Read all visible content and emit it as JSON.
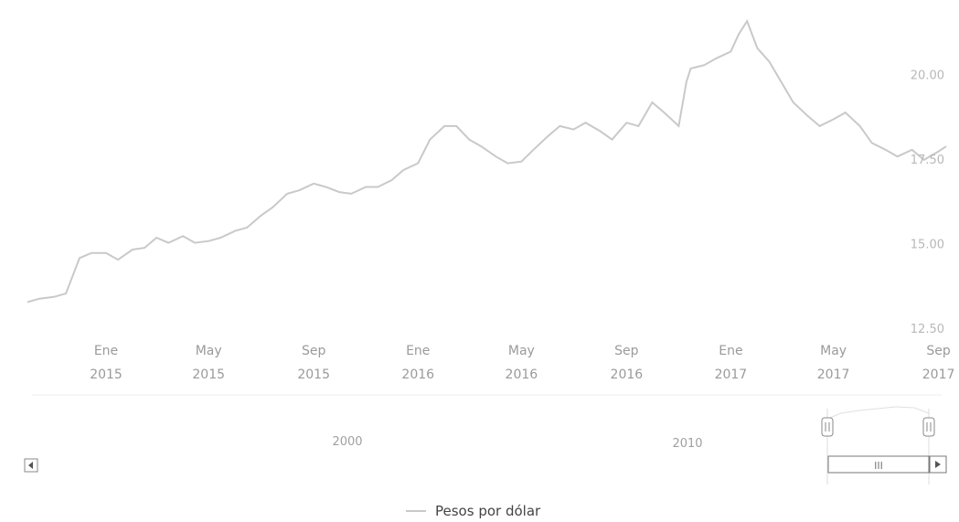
{
  "chart_data": {
    "type": "line",
    "series": [
      {
        "name": "Pesos por dólar",
        "color": "#c9c9c9",
        "points": [
          [
            "2014-10-01",
            13.3
          ],
          [
            "2014-10-15",
            13.4
          ],
          [
            "2014-11-01",
            13.45
          ],
          [
            "2014-11-15",
            13.55
          ],
          [
            "2014-12-01",
            14.6
          ],
          [
            "2014-12-15",
            14.75
          ],
          [
            "2015-01-01",
            14.75
          ],
          [
            "2015-01-15",
            14.55
          ],
          [
            "2015-02-01",
            14.85
          ],
          [
            "2015-02-15",
            14.9
          ],
          [
            "2015-03-01",
            15.2
          ],
          [
            "2015-03-15",
            15.05
          ],
          [
            "2015-04-01",
            15.25
          ],
          [
            "2015-04-15",
            15.05
          ],
          [
            "2015-05-01",
            15.1
          ],
          [
            "2015-05-15",
            15.2
          ],
          [
            "2015-06-01",
            15.4
          ],
          [
            "2015-06-15",
            15.5
          ],
          [
            "2015-07-01",
            15.85
          ],
          [
            "2015-07-15",
            16.1
          ],
          [
            "2015-08-01",
            16.5
          ],
          [
            "2015-08-15",
            16.6
          ],
          [
            "2015-09-01",
            16.8
          ],
          [
            "2015-09-15",
            16.7
          ],
          [
            "2015-10-01",
            16.55
          ],
          [
            "2015-10-15",
            16.5
          ],
          [
            "2015-11-01",
            16.7
          ],
          [
            "2015-11-15",
            16.7
          ],
          [
            "2015-12-01",
            16.9
          ],
          [
            "2015-12-15",
            17.2
          ],
          [
            "2016-01-01",
            17.4
          ],
          [
            "2016-01-15",
            18.1
          ],
          [
            "2016-02-01",
            18.5
          ],
          [
            "2016-02-15",
            18.5
          ],
          [
            "2016-03-01",
            18.1
          ],
          [
            "2016-03-15",
            17.9
          ],
          [
            "2016-04-01",
            17.6
          ],
          [
            "2016-04-15",
            17.4
          ],
          [
            "2016-05-01",
            17.45
          ],
          [
            "2016-05-15",
            17.8
          ],
          [
            "2016-06-01",
            18.2
          ],
          [
            "2016-06-15",
            18.5
          ],
          [
            "2016-07-01",
            18.4
          ],
          [
            "2016-07-15",
            18.6
          ],
          [
            "2016-08-01",
            18.35
          ],
          [
            "2016-08-15",
            18.1
          ],
          [
            "2016-09-01",
            18.6
          ],
          [
            "2016-09-15",
            18.5
          ],
          [
            "2016-10-01",
            19.2
          ],
          [
            "2016-10-15",
            18.9
          ],
          [
            "2016-11-01",
            18.5
          ],
          [
            "2016-11-10",
            19.8
          ],
          [
            "2016-11-15",
            20.2
          ],
          [
            "2016-12-01",
            20.3
          ],
          [
            "2016-12-15",
            20.5
          ],
          [
            "2017-01-01",
            20.7
          ],
          [
            "2017-01-10",
            21.2
          ],
          [
            "2017-01-20",
            21.6
          ],
          [
            "2017-02-01",
            20.8
          ],
          [
            "2017-02-15",
            20.4
          ],
          [
            "2017-03-01",
            19.8
          ],
          [
            "2017-03-15",
            19.2
          ],
          [
            "2017-04-01",
            18.8
          ],
          [
            "2017-04-15",
            18.5
          ],
          [
            "2017-05-01",
            18.7
          ],
          [
            "2017-05-15",
            18.9
          ],
          [
            "2017-06-01",
            18.5
          ],
          [
            "2017-06-15",
            18.0
          ],
          [
            "2017-07-01",
            17.8
          ],
          [
            "2017-07-15",
            17.6
          ],
          [
            "2017-08-01",
            17.8
          ],
          [
            "2017-08-15",
            17.5
          ],
          [
            "2017-09-01",
            17.75
          ],
          [
            "2017-09-10",
            17.9
          ]
        ]
      }
    ],
    "yticks": [
      "12.50",
      "15.00",
      "17.50",
      "20.00"
    ],
    "xticks": [
      {
        "month": "Ene",
        "year": "2015",
        "date": "2015-01-01"
      },
      {
        "month": "May",
        "year": "2015",
        "date": "2015-05-01"
      },
      {
        "month": "Sep",
        "year": "2015",
        "date": "2015-09-01"
      },
      {
        "month": "Ene",
        "year": "2016",
        "date": "2016-01-01"
      },
      {
        "month": "May",
        "year": "2016",
        "date": "2016-05-01"
      },
      {
        "month": "Sep",
        "year": "2016",
        "date": "2016-09-01"
      },
      {
        "month": "Ene",
        "year": "2017",
        "date": "2017-01-01"
      },
      {
        "month": "May",
        "year": "2017",
        "date": "2017-05-01"
      },
      {
        "month": "Sep",
        "year": "2017",
        "date": "2017-09-01"
      }
    ],
    "xlim": [
      "2014-10-01",
      "2017-09-10"
    ],
    "ylim": [
      12.5,
      21.9
    ],
    "navigator": {
      "labels": [
        "2000",
        "2010"
      ],
      "scrollbar_grip": "III"
    },
    "legend": {
      "label": "Pesos por dólar",
      "position": "bottom-center"
    }
  }
}
